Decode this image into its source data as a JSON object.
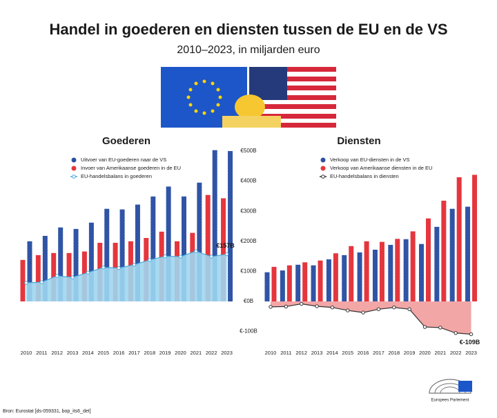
{
  "header": {
    "title": "Handel in goederen en diensten tussen de EU en de VS",
    "subtitle": "2010–2023, in miljarden euro"
  },
  "chart_data": [
    {
      "type": "bar",
      "title": "Goederen",
      "categories": [
        "2010",
        "2011",
        "2012",
        "2013",
        "2014",
        "2015",
        "2016",
        "2017",
        "2018",
        "2019",
        "2020",
        "2021",
        "2022",
        "2023"
      ],
      "ylim": [
        -100,
        500
      ],
      "series": [
        {
          "name": "Uitvoer van EU-goederen naar de VS",
          "color": "#2b4fa0",
          "values": [
            200,
            218,
            246,
            241,
            262,
            308,
            306,
            322,
            349,
            382,
            349,
            395,
            503,
            500
          ]
        },
        {
          "name": "Invoer van Amerikaanse goederen in de EU",
          "color": "#e5363d",
          "values": [
            138,
            154,
            161,
            161,
            166,
            195,
            195,
            200,
            211,
            232,
            200,
            228,
            354,
            343
          ]
        },
        {
          "name": "EU-handelsbalans in goederen",
          "type": "area",
          "color": "#4aa9da",
          "fill": "#9fd6f0",
          "values": [
            62,
            64,
            85,
            80,
            96,
            113,
            111,
            122,
            138,
            150,
            149,
            167,
            149,
            157
          ],
          "value_labels": [
            null,
            null,
            null,
            null,
            null,
            null,
            null,
            null,
            null,
            null,
            null,
            null,
            null,
            "€157B"
          ]
        }
      ]
    },
    {
      "type": "bar",
      "title": "Diensten",
      "categories": [
        "2010",
        "2011",
        "2012",
        "2013",
        "2014",
        "2015",
        "2016",
        "2017",
        "2018",
        "2019",
        "2020",
        "2021",
        "2022",
        "2023"
      ],
      "ylim": [
        -100,
        500
      ],
      "yticks": [
        {
          "value": 500,
          "label": "€500B"
        },
        {
          "value": 400,
          "label": "€400B"
        },
        {
          "value": 300,
          "label": "€300B"
        },
        {
          "value": 200,
          "label": "€200B"
        },
        {
          "value": 100,
          "label": "€100B"
        },
        {
          "value": 0,
          "label": "€0B"
        },
        {
          "value": -100,
          "label": "€-100B"
        }
      ],
      "series": [
        {
          "name": "Verkoop van EU-diensten in de VS",
          "color": "#2b4fa0",
          "values": [
            97,
            103,
            122,
            120,
            140,
            154,
            163,
            172,
            188,
            207,
            191,
            248,
            308,
            315
          ]
        },
        {
          "name": "Verkoop van Amerikaanse diensten in de EU",
          "color": "#e5363d",
          "values": [
            115,
            120,
            130,
            136,
            160,
            184,
            200,
            198,
            208,
            233,
            276,
            335,
            413,
            421
          ]
        },
        {
          "name": "EU-handelsbalans in diensten",
          "type": "area",
          "color": "#333333",
          "fill": "#f29c9c",
          "values": [
            -18,
            -17,
            -8,
            -16,
            -20,
            -30,
            -37,
            -26,
            -20,
            -26,
            -85,
            -87,
            -105,
            -109
          ],
          "value_labels": [
            null,
            null,
            null,
            null,
            null,
            null,
            null,
            null,
            null,
            null,
            null,
            null,
            null,
            "€-109B"
          ]
        }
      ]
    }
  ],
  "source": "Bron: Eurostat [ds-059331, bop_its6_det]",
  "logo": "Europees Parlement"
}
